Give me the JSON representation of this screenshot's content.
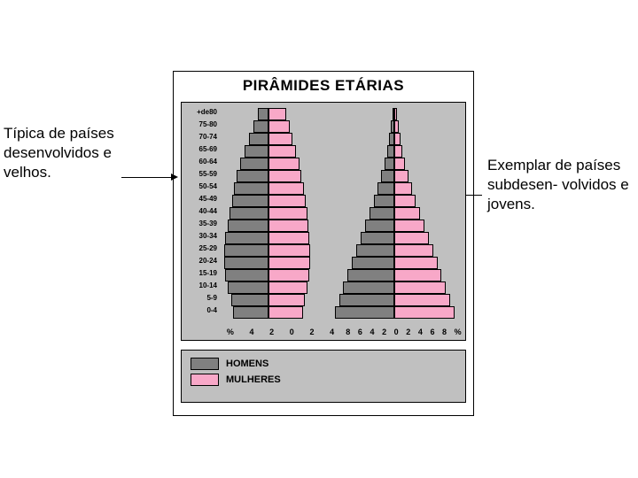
{
  "title": "PIRÂMIDES ETÁRIAS",
  "annotation_left": "Típica de países desenvolvidos e velhos.",
  "annotation_right": "Exemplar de países subdesen- volvidos e jovens.",
  "legend": {
    "men": "HOMENS",
    "women": "MULHERES"
  },
  "colors": {
    "men": "#808080",
    "women": "#f8a8c8",
    "plot_bg": "#c0c0c0",
    "border": "#000000",
    "page_bg": "#ffffff"
  },
  "age_labels": [
    "+de80",
    "75-80",
    "70-74",
    "65-69",
    "60-64",
    "55-59",
    "50-54",
    "45-49",
    "40-44",
    "35-39",
    "30-34",
    "25-29",
    "20-24",
    "15-19",
    "10-14",
    "5-9",
    "0-4"
  ],
  "pyramids": {
    "left": {
      "label": "developed",
      "max_pct": 4.5,
      "xticks": [
        "%",
        "4",
        "2",
        "0",
        "2",
        "4"
      ],
      "men": [
        1.0,
        1.4,
        1.8,
        2.2,
        2.6,
        2.9,
        3.1,
        3.3,
        3.5,
        3.7,
        3.9,
        4.0,
        4.0,
        3.9,
        3.7,
        3.4,
        3.2
      ],
      "women": [
        1.6,
        1.9,
        2.2,
        2.5,
        2.8,
        3.0,
        3.2,
        3.4,
        3.5,
        3.6,
        3.7,
        3.8,
        3.8,
        3.7,
        3.5,
        3.3,
        3.1
      ]
    },
    "right": {
      "label": "underdeveloped",
      "max_pct": 9,
      "xticks": [
        "8",
        "6",
        "4",
        "2",
        "0",
        "2",
        "4",
        "6",
        "8",
        "%"
      ],
      "men": [
        0.3,
        0.5,
        0.7,
        1.0,
        1.4,
        1.8,
        2.3,
        2.8,
        3.4,
        4.0,
        4.6,
        5.2,
        5.8,
        6.4,
        7.0,
        7.6,
        8.2
      ],
      "women": [
        0.4,
        0.6,
        0.8,
        1.1,
        1.5,
        1.9,
        2.4,
        2.9,
        3.5,
        4.1,
        4.7,
        5.3,
        5.9,
        6.5,
        7.1,
        7.7,
        8.3
      ]
    }
  }
}
